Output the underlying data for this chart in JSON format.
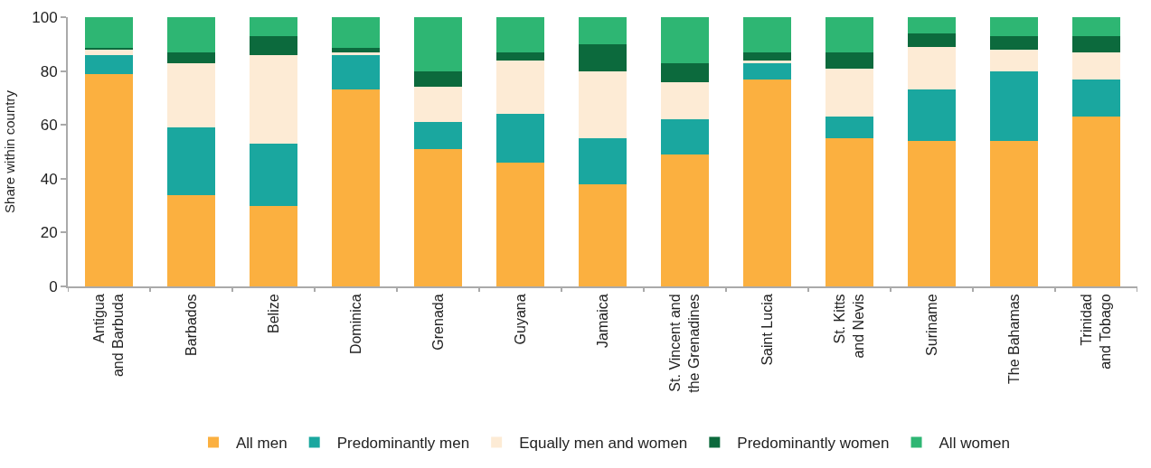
{
  "chart_data": {
    "type": "bar",
    "stacked": true,
    "ylabel": "Share within country",
    "categories": [
      "Antigua\nand Barbuda",
      "Barbados",
      "Belize",
      "Dominica",
      "Grenada",
      "Guyana",
      "Jamaica",
      "St. Vincent and\nthe Grenadines",
      "Saint Lucia",
      "St. Kitts\nand Nevis",
      "Suriname",
      "The Bahamas",
      "Trinidad\nand Tobago"
    ],
    "series": [
      {
        "name": "All men",
        "color": "#fbb040",
        "values": [
          79,
          34,
          30,
          73,
          51,
          46,
          38,
          49,
          77,
          55,
          54,
          54,
          63
        ]
      },
      {
        "name": "Predominantly men",
        "color": "#1aa79f",
        "values": [
          7,
          25,
          23,
          13,
          10,
          18,
          17,
          13,
          6,
          8,
          19,
          26,
          14
        ]
      },
      {
        "name": "Equally men and women",
        "color": "#fdebd5",
        "values": [
          2,
          24,
          33,
          1,
          13,
          20,
          25,
          14,
          1,
          18,
          16,
          8,
          10
        ]
      },
      {
        "name": "Predominantly women",
        "color": "#0c6a3d",
        "values": [
          0.5,
          4,
          7,
          1.5,
          6,
          3,
          10,
          7,
          3,
          6,
          5,
          5,
          6
        ]
      },
      {
        "name": "All women",
        "color": "#2eb673",
        "values": [
          11.5,
          13,
          7,
          11.5,
          20,
          13,
          10,
          17,
          13,
          13,
          6,
          7,
          7
        ]
      }
    ],
    "ylim": [
      0,
      100
    ],
    "yticks": [
      0,
      20,
      40,
      60,
      80,
      100
    ],
    "legend": "bottom"
  }
}
